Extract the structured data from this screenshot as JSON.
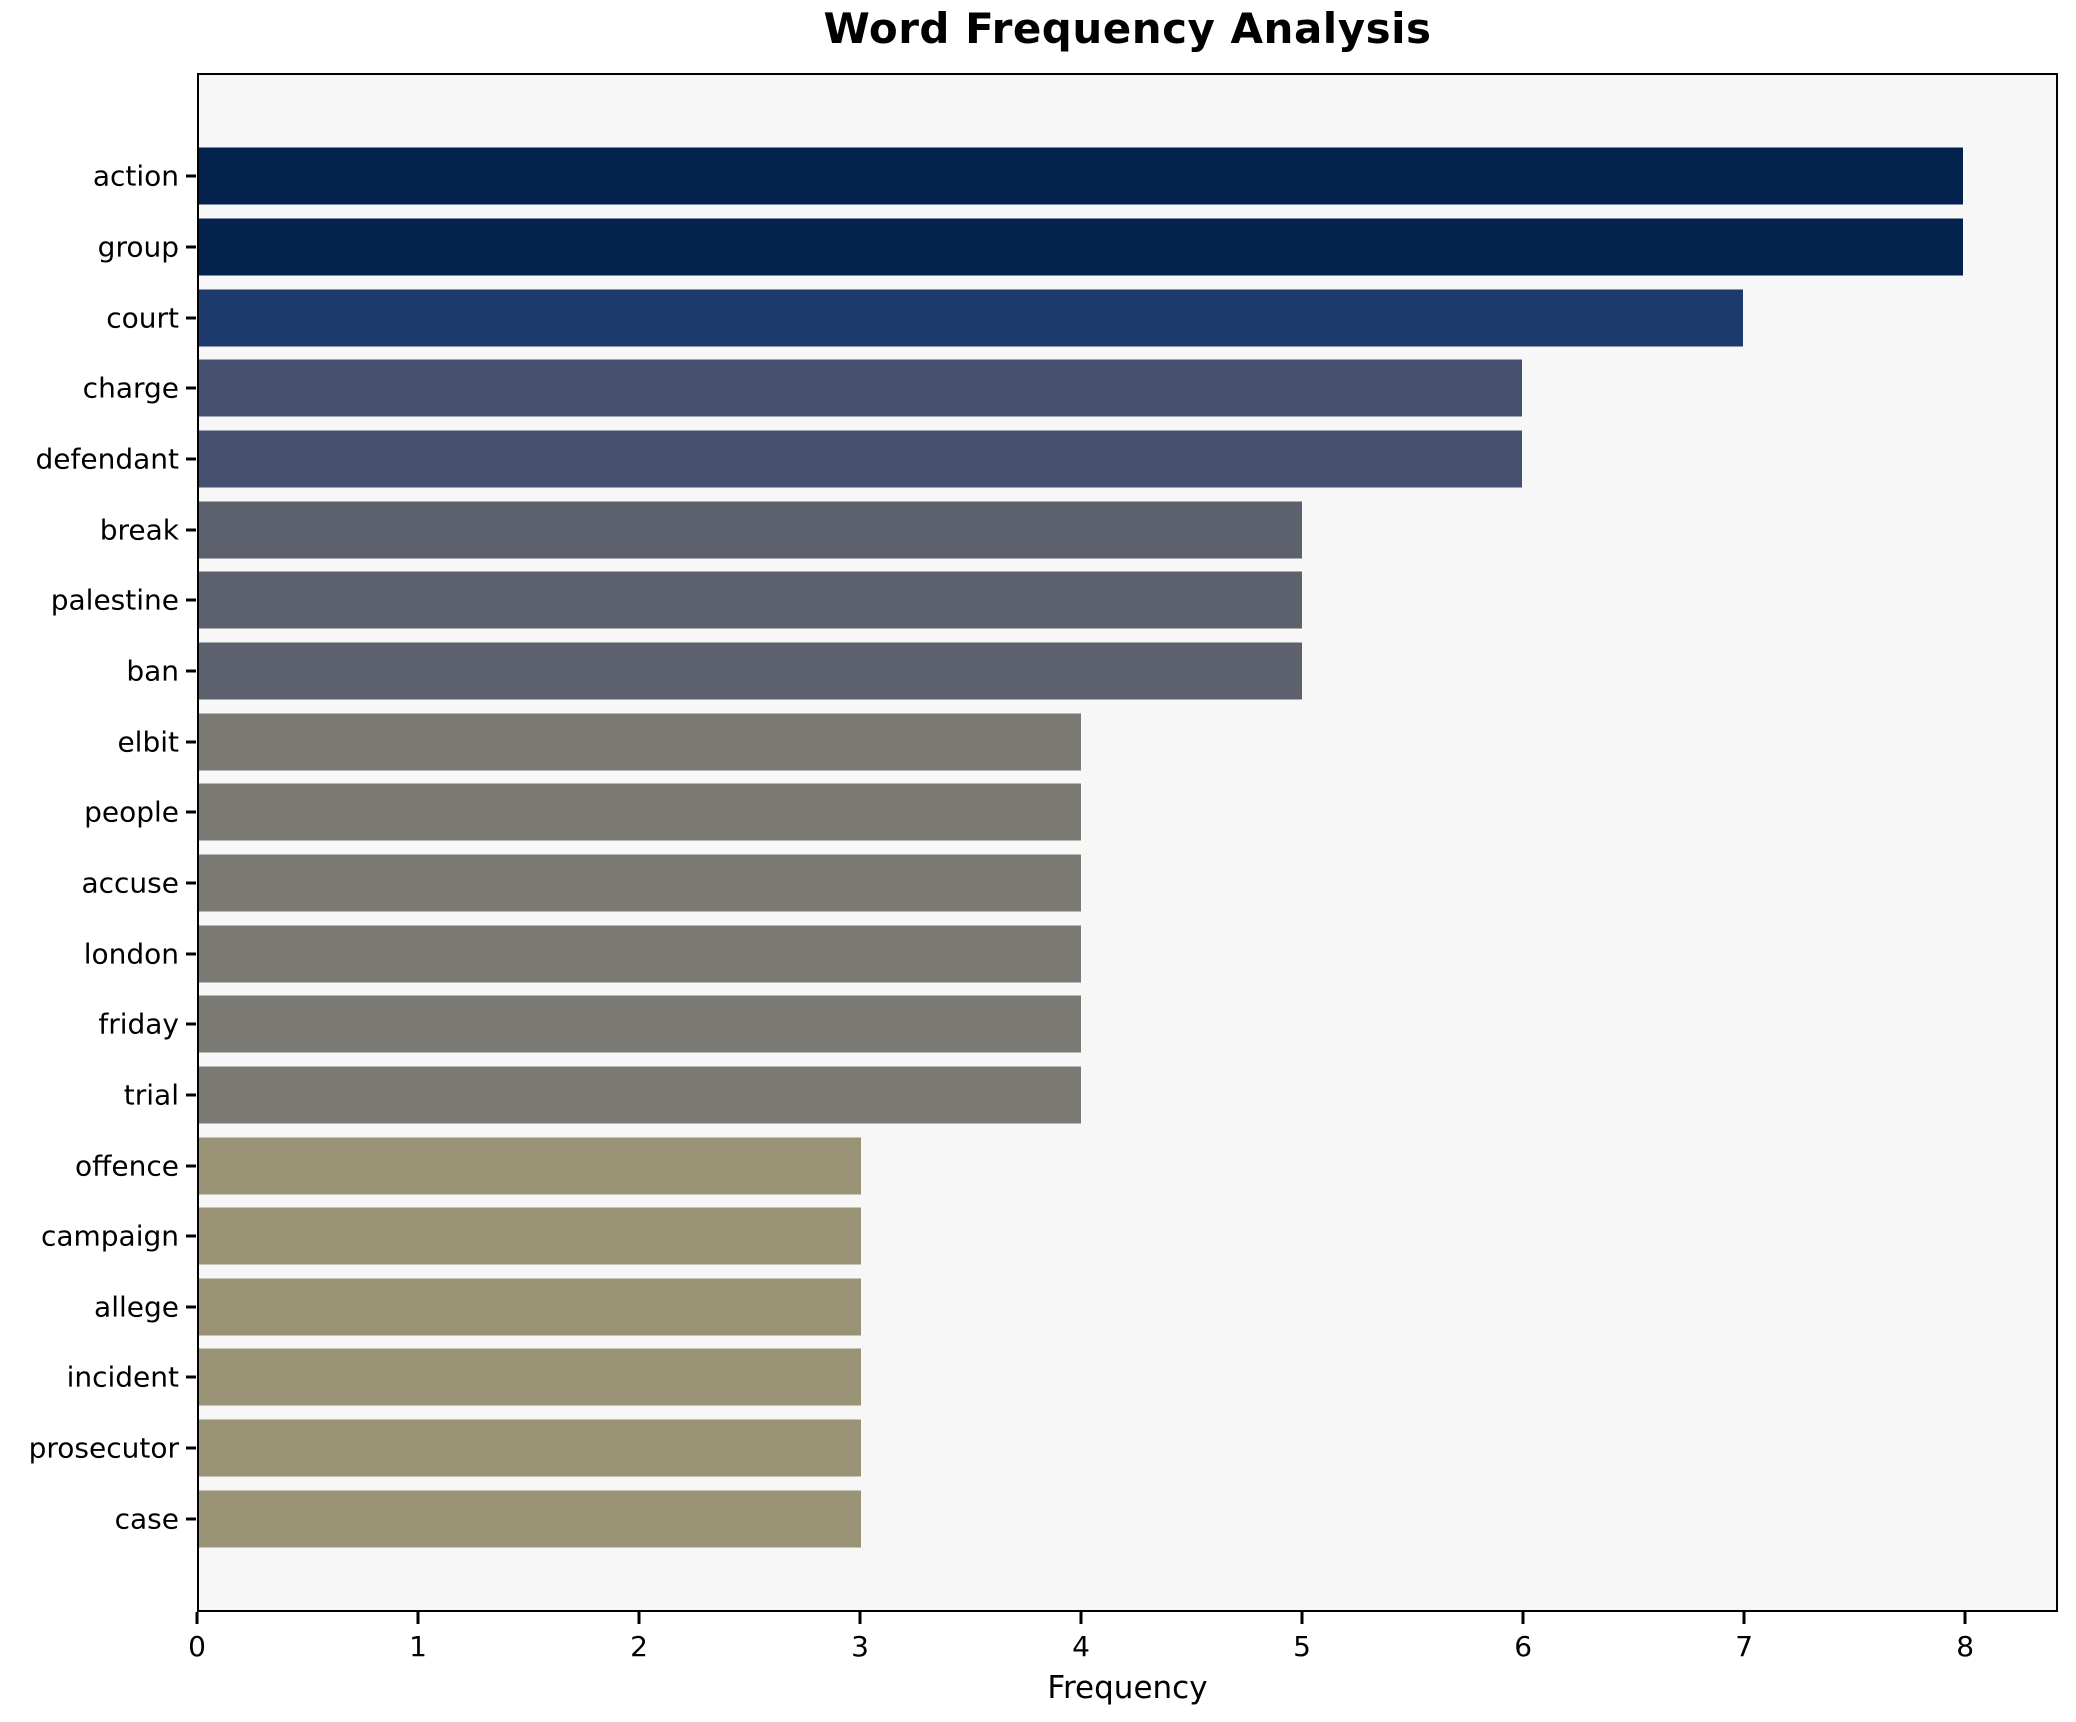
{
  "chart_data": {
    "type": "bar",
    "orientation": "horizontal",
    "title": "Word Frequency Analysis",
    "xlabel": "Frequency",
    "ylabel": "",
    "categories": [
      "action",
      "group",
      "court",
      "charge",
      "defendant",
      "break",
      "palestine",
      "ban",
      "elbit",
      "people",
      "accuse",
      "london",
      "friday",
      "trial",
      "offence",
      "campaign",
      "allege",
      "incident",
      "prosecutor",
      "case"
    ],
    "values": [
      8,
      8,
      7,
      6,
      6,
      5,
      5,
      5,
      4,
      4,
      4,
      4,
      4,
      4,
      3,
      3,
      3,
      3,
      3,
      3
    ],
    "bar_colors": [
      "#04224e",
      "#04224e",
      "#1c3a6c",
      "#45506e",
      "#45506e",
      "#5d616d",
      "#5d616d",
      "#5d616d",
      "#7a7974",
      "#7a7974",
      "#7a7974",
      "#7a7974",
      "#7a7974",
      "#7a7974",
      "#999274",
      "#999274",
      "#999274",
      "#999274",
      "#999274",
      "#999274"
    ],
    "xticks": [
      0,
      1,
      2,
      3,
      4,
      5,
      6,
      7,
      8
    ],
    "xlim": [
      0,
      8.42
    ],
    "grid": false,
    "legend": false,
    "plot_background": "#f7f7f8",
    "figure_background": "#ffffff",
    "spine_color": "#000000",
    "tick_color": "#000000"
  }
}
